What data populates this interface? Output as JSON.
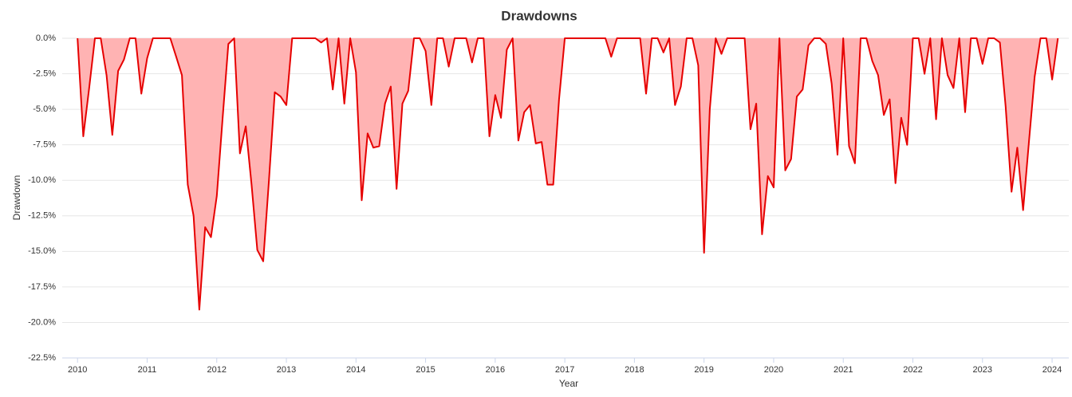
{
  "chart_data": {
    "type": "area",
    "title": "Drawdowns",
    "xlabel": "Year",
    "ylabel": "Drawdown",
    "color": "#e60000",
    "fill": "#ffb3b3",
    "grid": true,
    "xlim": [
      2009.78,
      2024.24
    ],
    "xticks": [
      2010,
      2011,
      2012,
      2013,
      2014,
      2015,
      2016,
      2017,
      2018,
      2019,
      2020,
      2021,
      2022,
      2023,
      2024
    ],
    "ylim": [
      -22.5,
      0
    ],
    "yticks": [
      {
        "value": 0,
        "label": "0.0%"
      },
      {
        "value": -2.5,
        "label": "-2.5%"
      },
      {
        "value": -5,
        "label": "-5.0%"
      },
      {
        "value": -7.5,
        "label": "-7.5%"
      },
      {
        "value": -10,
        "label": "-10.0%"
      },
      {
        "value": -12.5,
        "label": "-12.5%"
      },
      {
        "value": -15,
        "label": "-15.0%"
      },
      {
        "value": -17.5,
        "label": "-17.5%"
      },
      {
        "value": -20,
        "label": "-20.0%"
      },
      {
        "value": -22.5,
        "label": "-22.5%"
      }
    ],
    "x": [
      2010,
      2010.083,
      2010.167,
      2010.25,
      2010.333,
      2010.417,
      2010.5,
      2010.583,
      2010.667,
      2010.75,
      2010.833,
      2010.917,
      2011,
      2011.083,
      2011.167,
      2011.25,
      2011.333,
      2011.417,
      2011.5,
      2011.583,
      2011.667,
      2011.75,
      2011.833,
      2011.917,
      2012,
      2012.083,
      2012.167,
      2012.25,
      2012.333,
      2012.417,
      2012.5,
      2012.583,
      2012.667,
      2012.75,
      2012.833,
      2012.917,
      2013,
      2013.083,
      2013.167,
      2013.25,
      2013.333,
      2013.417,
      2013.5,
      2013.583,
      2013.667,
      2013.75,
      2013.833,
      2013.917,
      2014,
      2014.083,
      2014.167,
      2014.25,
      2014.333,
      2014.417,
      2014.5,
      2014.583,
      2014.667,
      2014.75,
      2014.833,
      2014.917,
      2015,
      2015.083,
      2015.167,
      2015.25,
      2015.333,
      2015.417,
      2015.5,
      2015.583,
      2015.667,
      2015.75,
      2015.833,
      2015.917,
      2016,
      2016.083,
      2016.167,
      2016.25,
      2016.333,
      2016.417,
      2016.5,
      2016.583,
      2016.667,
      2016.75,
      2016.833,
      2016.917,
      2017,
      2017.083,
      2017.167,
      2017.25,
      2017.333,
      2017.417,
      2017.5,
      2017.583,
      2017.667,
      2017.75,
      2017.833,
      2017.917,
      2018,
      2018.083,
      2018.167,
      2018.25,
      2018.333,
      2018.417,
      2018.5,
      2018.583,
      2018.667,
      2018.75,
      2018.833,
      2018.917,
      2019,
      2019.083,
      2019.167,
      2019.25,
      2019.333,
      2019.417,
      2019.5,
      2019.583,
      2019.667,
      2019.75,
      2019.833,
      2019.917,
      2020,
      2020.083,
      2020.167,
      2020.25,
      2020.333,
      2020.417,
      2020.5,
      2020.583,
      2020.667,
      2020.75,
      2020.833,
      2020.917,
      2021,
      2021.083,
      2021.167,
      2021.25,
      2021.333,
      2021.417,
      2021.5,
      2021.583,
      2021.667,
      2021.75,
      2021.833,
      2021.917,
      2022,
      2022.083,
      2022.167,
      2022.25,
      2022.333,
      2022.417,
      2022.5,
      2022.583,
      2022.667,
      2022.75,
      2022.833,
      2022.917,
      2023,
      2023.083,
      2023.167,
      2023.25,
      2023.333,
      2023.417,
      2023.5,
      2023.583,
      2023.667,
      2023.75,
      2023.833,
      2023.917,
      2024,
      2024.083
    ],
    "values": [
      0,
      -6.9,
      -3.5,
      0,
      0,
      -2.6,
      -6.8,
      -2.3,
      -1.5,
      0,
      0,
      -3.9,
      -1.4,
      0,
      0,
      0,
      0,
      -1.3,
      -2.6,
      -10.3,
      -12.5,
      -19.1,
      -13.3,
      -14.0,
      -11.1,
      -5.7,
      -0.4,
      0,
      -8.1,
      -6.2,
      -10.3,
      -14.9,
      -15.7,
      -10.0,
      -3.8,
      -4.1,
      -4.7,
      0,
      0,
      0,
      0,
      0,
      -0.3,
      0,
      -3.6,
      0,
      -4.6,
      0,
      -2.4,
      -11.4,
      -6.7,
      -7.7,
      -7.6,
      -4.6,
      -3.4,
      -10.6,
      -4.6,
      -3.7,
      0,
      0,
      -0.9,
      -4.7,
      0,
      0,
      -2.0,
      0,
      0,
      0,
      -1.7,
      0,
      0,
      -6.9,
      -4.0,
      -5.6,
      -0.8,
      0,
      -7.2,
      -5.2,
      -4.7,
      -7.4,
      -7.3,
      -10.3,
      -10.3,
      -4.3,
      0,
      0,
      0,
      0,
      0,
      0,
      0,
      0,
      -1.3,
      0,
      0,
      0,
      0,
      0,
      -3.9,
      0,
      0,
      -1.0,
      0,
      -4.7,
      -3.4,
      0,
      0,
      -1.9,
      -15.1,
      -5.0,
      0,
      -1.1,
      0,
      0,
      0,
      0,
      -6.4,
      -4.6,
      -13.8,
      -9.7,
      -10.5,
      0,
      -9.3,
      -8.5,
      -4.1,
      -3.6,
      -0.5,
      0,
      0,
      -0.4,
      -3.2,
      -8.2,
      0,
      -7.6,
      -8.8,
      0,
      0,
      -1.6,
      -2.6,
      -5.4,
      -4.3,
      -10.2,
      -5.6,
      -7.5,
      0,
      0,
      -2.5,
      0,
      -5.7,
      0,
      -2.6,
      -3.5,
      0,
      -5.2,
      0,
      0,
      -1.8,
      0,
      0,
      -0.3,
      -4.8,
      -10.8,
      -7.7,
      -12.1,
      -7.3,
      -2.7,
      0,
      0,
      -2.9,
      0
    ]
  }
}
